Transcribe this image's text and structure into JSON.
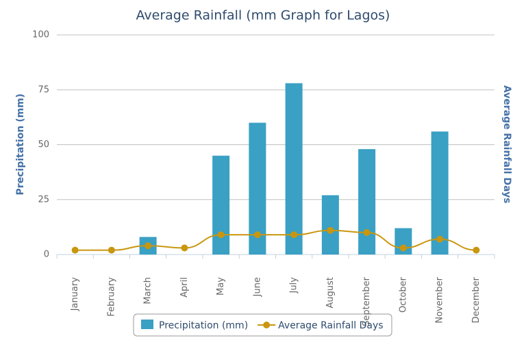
{
  "chart_data": {
    "type": "bar",
    "title": "Average Rainfall (mm Graph for Lagos)",
    "y_label": "Precipitation (mm)",
    "y2_label": "Average Rainfall Days",
    "categories": [
      "January",
      "February",
      "March",
      "April",
      "May",
      "June",
      "July",
      "August",
      "September",
      "October",
      "November",
      "December"
    ],
    "series": [
      {
        "name": "Precipitation (mm)",
        "type": "bar",
        "color": "#3aa0c4",
        "values": [
          0,
          0,
          8,
          0,
          45,
          60,
          78,
          27,
          48,
          12,
          56,
          0
        ]
      },
      {
        "name": "Average Rainfall Days",
        "type": "line",
        "axis": "y2",
        "color": "#c9960f",
        "values": [
          2,
          2,
          4,
          3,
          9,
          9,
          9,
          11,
          10,
          3,
          7,
          2
        ]
      }
    ],
    "ylim": [
      0,
      100
    ],
    "yticks": [
      0,
      25,
      50,
      75,
      100
    ],
    "y2lim": [
      0,
      100
    ],
    "grid": true,
    "legend": "bottom"
  }
}
